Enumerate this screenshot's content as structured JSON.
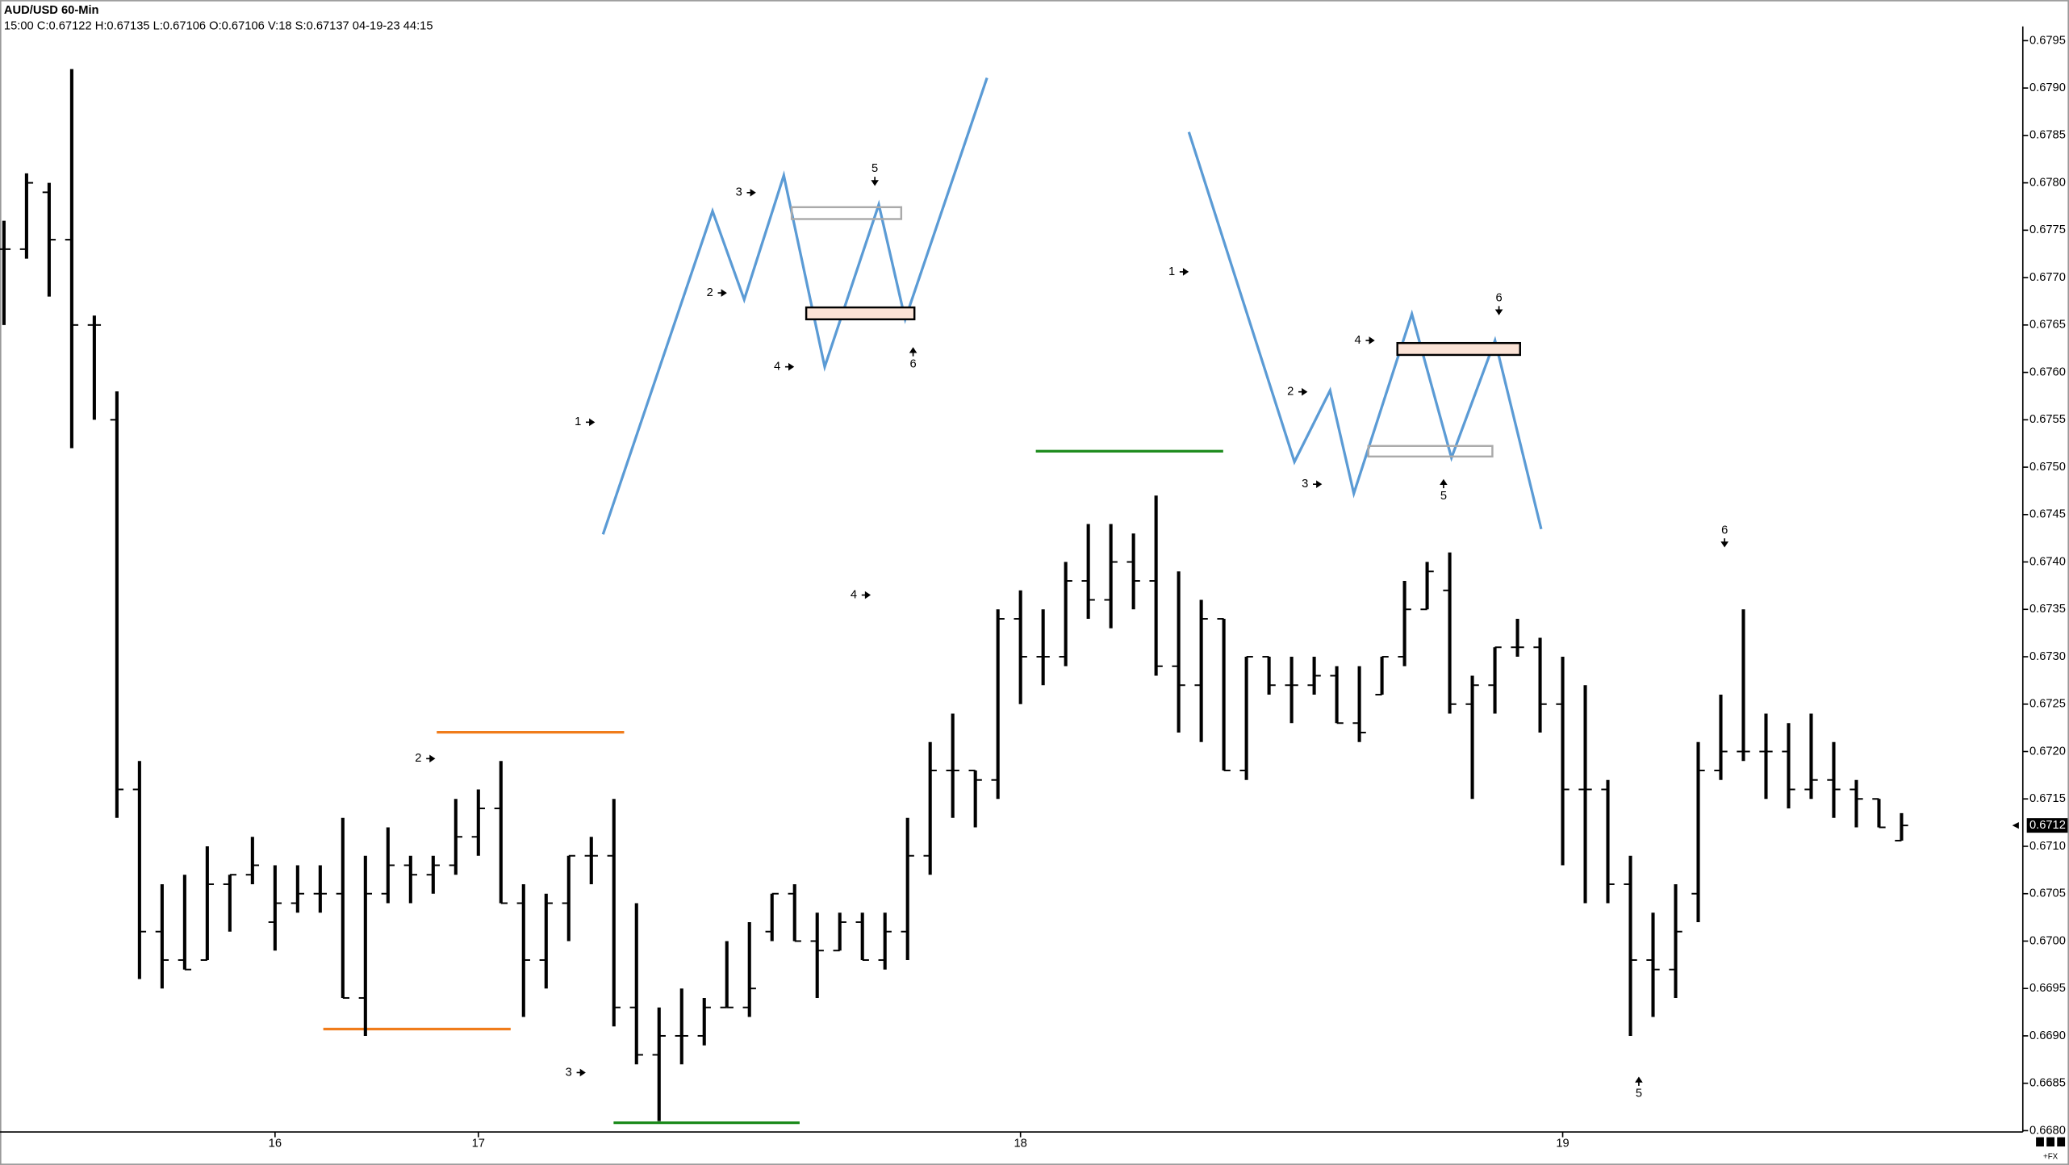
{
  "chart_data": {
    "type": "ohlc",
    "title": "AUD/USD 60-Min",
    "subtitle": "15:00 C:0.67122 H:0.67135 L:0.67106 O:0.67106 V:18 S:0.67137 04-19-23 44:15",
    "corner_label": "+FX",
    "categories": [
      null,
      null,
      null,
      null,
      null,
      null,
      null,
      null,
      null,
      null,
      null,
      null,
      "16",
      null,
      null,
      null,
      null,
      null,
      null,
      null,
      null,
      "17",
      null,
      null,
      null,
      null,
      null,
      null,
      null,
      null,
      null,
      null,
      null,
      null,
      null,
      null,
      null,
      null,
      null,
      null,
      null,
      null,
      null,
      null,
      null,
      "18",
      null,
      null,
      null,
      null,
      null,
      null,
      null,
      null,
      null,
      null,
      null,
      null,
      null,
      null,
      null,
      null,
      null,
      null,
      null,
      null,
      null,
      null,
      null,
      "19",
      null,
      null,
      null,
      null,
      null,
      null,
      null,
      null,
      null,
      null,
      null,
      null,
      null,
      null,
      null
    ],
    "open": [
      0.6773,
      0.6773,
      0.6779,
      0.6774,
      0.6765,
      0.6755,
      0.6716,
      0.6701,
      0.6698,
      0.6698,
      0.6706,
      0.6707,
      0.6702,
      0.6704,
      0.6705,
      0.6705,
      0.6694,
      0.6705,
      0.6708,
      0.6707,
      0.6708,
      0.6711,
      0.6714,
      0.6704,
      0.6698,
      0.6704,
      0.6709,
      0.6709,
      0.6693,
      0.6688,
      0.669,
      0.669,
      0.6693,
      0.6693,
      0.6701,
      0.6705,
      0.67,
      0.6699,
      0.6702,
      0.6698,
      0.6701,
      0.6709,
      0.6718,
      0.6718,
      0.6717,
      0.6734,
      0.673,
      0.673,
      0.6738,
      0.6736,
      0.674,
      0.6738,
      0.6729,
      0.6727,
      0.6734,
      0.6718,
      0.673,
      0.6727,
      0.6727,
      0.6728,
      0.6723,
      0.6726,
      0.673,
      0.6735,
      0.6737,
      0.6725,
      0.6727,
      0.6731,
      0.6731,
      0.6725,
      0.6716,
      0.6716,
      0.6706,
      0.6698,
      0.6697,
      0.6705,
      0.6718,
      0.672,
      0.672,
      0.672,
      0.6716,
      0.6717,
      0.6716,
      0.6715,
      0.67106
    ],
    "high": [
      0.6776,
      0.6781,
      0.678,
      0.6792,
      0.6766,
      0.6758,
      0.6719,
      0.6706,
      0.6707,
      0.671,
      0.6707,
      0.6711,
      0.6708,
      0.6708,
      0.6708,
      0.6713,
      0.6709,
      0.6712,
      0.6709,
      0.6709,
      0.6715,
      0.6716,
      0.6719,
      0.6706,
      0.6705,
      0.6709,
      0.6711,
      0.6715,
      0.6704,
      0.6693,
      0.6695,
      0.6694,
      0.67,
      0.6702,
      0.6705,
      0.6706,
      0.6703,
      0.6703,
      0.6703,
      0.6703,
      0.6713,
      0.6721,
      0.6724,
      0.6718,
      0.6735,
      0.6737,
      0.6735,
      0.674,
      0.6744,
      0.6744,
      0.6743,
      0.6747,
      0.6739,
      0.6736,
      0.6734,
      0.673,
      0.673,
      0.673,
      0.673,
      0.6729,
      0.6729,
      0.673,
      0.6738,
      0.674,
      0.6741,
      0.6728,
      0.6731,
      0.6734,
      0.6732,
      0.673,
      0.6727,
      0.6717,
      0.6709,
      0.6703,
      0.6706,
      0.6721,
      0.6726,
      0.6735,
      0.6724,
      0.6723,
      0.6724,
      0.6721,
      0.6717,
      0.6715,
      0.67135
    ],
    "low": [
      0.6765,
      0.6772,
      0.6768,
      0.6752,
      0.6755,
      0.6713,
      0.6696,
      0.6695,
      0.6697,
      0.6698,
      0.6701,
      0.6706,
      0.6699,
      0.6703,
      0.6703,
      0.6694,
      0.669,
      0.6704,
      0.6704,
      0.6705,
      0.6707,
      0.6709,
      0.6704,
      0.6692,
      0.6695,
      0.67,
      0.6706,
      0.6691,
      0.6687,
      0.6681,
      0.6687,
      0.6689,
      0.6693,
      0.6692,
      0.67,
      0.67,
      0.6694,
      0.6699,
      0.6698,
      0.6697,
      0.6698,
      0.6707,
      0.6713,
      0.6712,
      0.6715,
      0.6725,
      0.6727,
      0.6729,
      0.6734,
      0.6733,
      0.6735,
      0.6728,
      0.6722,
      0.6721,
      0.6718,
      0.6717,
      0.6726,
      0.6723,
      0.6726,
      0.6723,
      0.6721,
      0.6726,
      0.6729,
      0.6735,
      0.6724,
      0.6715,
      0.6724,
      0.673,
      0.6722,
      0.6708,
      0.6704,
      0.6704,
      0.669,
      0.6692,
      0.6694,
      0.6702,
      0.6717,
      0.6719,
      0.6715,
      0.6714,
      0.6715,
      0.6713,
      0.6712,
      0.6712,
      0.67106
    ],
    "close": [
      0.6773,
      0.678,
      0.6774,
      0.6765,
      0.6765,
      0.6716,
      0.6701,
      0.6698,
      0.6697,
      0.6706,
      0.6707,
      0.6708,
      0.6704,
      0.6705,
      0.6705,
      0.6694,
      0.6705,
      0.6708,
      0.6707,
      0.6708,
      0.6711,
      0.6714,
      0.6704,
      0.6698,
      0.6704,
      0.6709,
      0.6709,
      0.6693,
      0.6688,
      0.669,
      0.669,
      0.6693,
      0.6693,
      0.6695,
      0.6705,
      0.67,
      0.6699,
      0.6702,
      0.6698,
      0.6701,
      0.6709,
      0.6718,
      0.6718,
      0.6717,
      0.6734,
      0.673,
      0.673,
      0.6738,
      0.6736,
      0.674,
      0.6738,
      0.6729,
      0.6727,
      0.6734,
      0.6718,
      0.673,
      0.6727,
      0.6727,
      0.6728,
      0.6723,
      0.6722,
      0.673,
      0.6735,
      0.6739,
      0.6725,
      0.6727,
      0.6731,
      0.6731,
      0.6725,
      0.6716,
      0.6716,
      0.6706,
      0.6698,
      0.6697,
      0.6701,
      0.6718,
      0.672,
      0.672,
      0.672,
      0.6716,
      0.6717,
      0.6716,
      0.6715,
      0.6712,
      0.67122
    ],
    "color": "#000000",
    "ylim": [
      0.668,
      0.67965
    ],
    "yticks": [
      {
        "value": 0.668,
        "label": "0.6680"
      },
      0.6685,
      {
        "value": 0.669,
        "label": "0.6690"
      },
      0.6695,
      {
        "value": 0.67,
        "label": "0.6700"
      },
      0.6705,
      {
        "value": 0.671,
        "label": "0.6710"
      },
      0.6715,
      {
        "value": 0.672,
        "label": "0.6720"
      },
      0.6725,
      {
        "value": 0.673,
        "label": "0.6730"
      },
      0.6735,
      {
        "value": 0.674,
        "label": "0.6740"
      },
      0.6745,
      {
        "value": 0.675,
        "label": "0.6750"
      },
      0.6755,
      {
        "value": 0.676,
        "label": "0.6760"
      },
      0.6765,
      {
        "value": 0.677,
        "label": "0.6770"
      },
      0.6775,
      {
        "value": 0.678,
        "label": "0.6780"
      },
      0.6785,
      {
        "value": 0.679,
        "label": "0.6790"
      },
      0.6795
    ],
    "last_price": {
      "value": 0.67122,
      "label": "0.6712"
    },
    "annotations": [
      "1",
      "2",
      "3",
      "4",
      "5",
      "6",
      "4",
      "2",
      "3",
      "1",
      "2",
      "3",
      "4",
      "5",
      "6",
      "6",
      "5"
    ]
  }
}
